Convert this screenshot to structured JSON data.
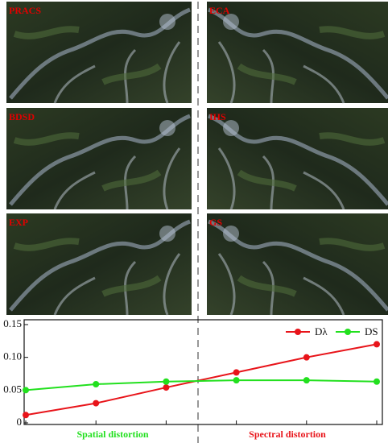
{
  "panels": [
    {
      "label": "PRACS"
    },
    {
      "label": "ECA"
    },
    {
      "label": "BDSD"
    },
    {
      "label": "IHS"
    },
    {
      "label": "EXP"
    },
    {
      "label": "GS"
    }
  ],
  "chart_data": {
    "type": "line",
    "categories": [
      null,
      null,
      null,
      null,
      null,
      null
    ],
    "series": [
      {
        "name": "Dλ",
        "color": "#e8141a",
        "values": [
          0.012,
          0.03,
          0.054,
          0.077,
          0.1,
          0.12
        ]
      },
      {
        "name": "DS",
        "color": "#22e01e",
        "values": [
          0.05,
          0.059,
          0.063,
          0.065,
          0.065,
          0.063
        ]
      }
    ],
    "ylim": [
      0,
      0.15
    ],
    "yticks": [
      0,
      0.05,
      {
        "value": 0.1,
        "label": "0.10"
      },
      0.15
    ],
    "legend": "top-right",
    "annotations": [
      {
        "text": "Spatial distortion",
        "color": "#22e01e"
      },
      {
        "text": "Spectral distortion",
        "color": "#e8141a"
      }
    ]
  }
}
